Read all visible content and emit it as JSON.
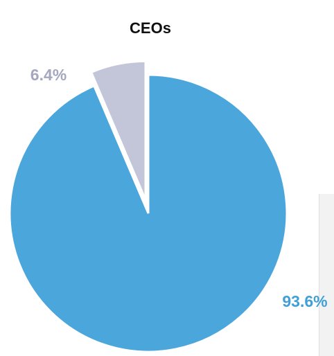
{
  "chart_data": {
    "type": "pie",
    "title": "CEOs",
    "values": [
      93.6,
      6.4
    ],
    "value_labels": [
      "93.6%",
      "6.4%"
    ],
    "colors": [
      "#4ba6dc",
      "#c3c6d9"
    ]
  }
}
